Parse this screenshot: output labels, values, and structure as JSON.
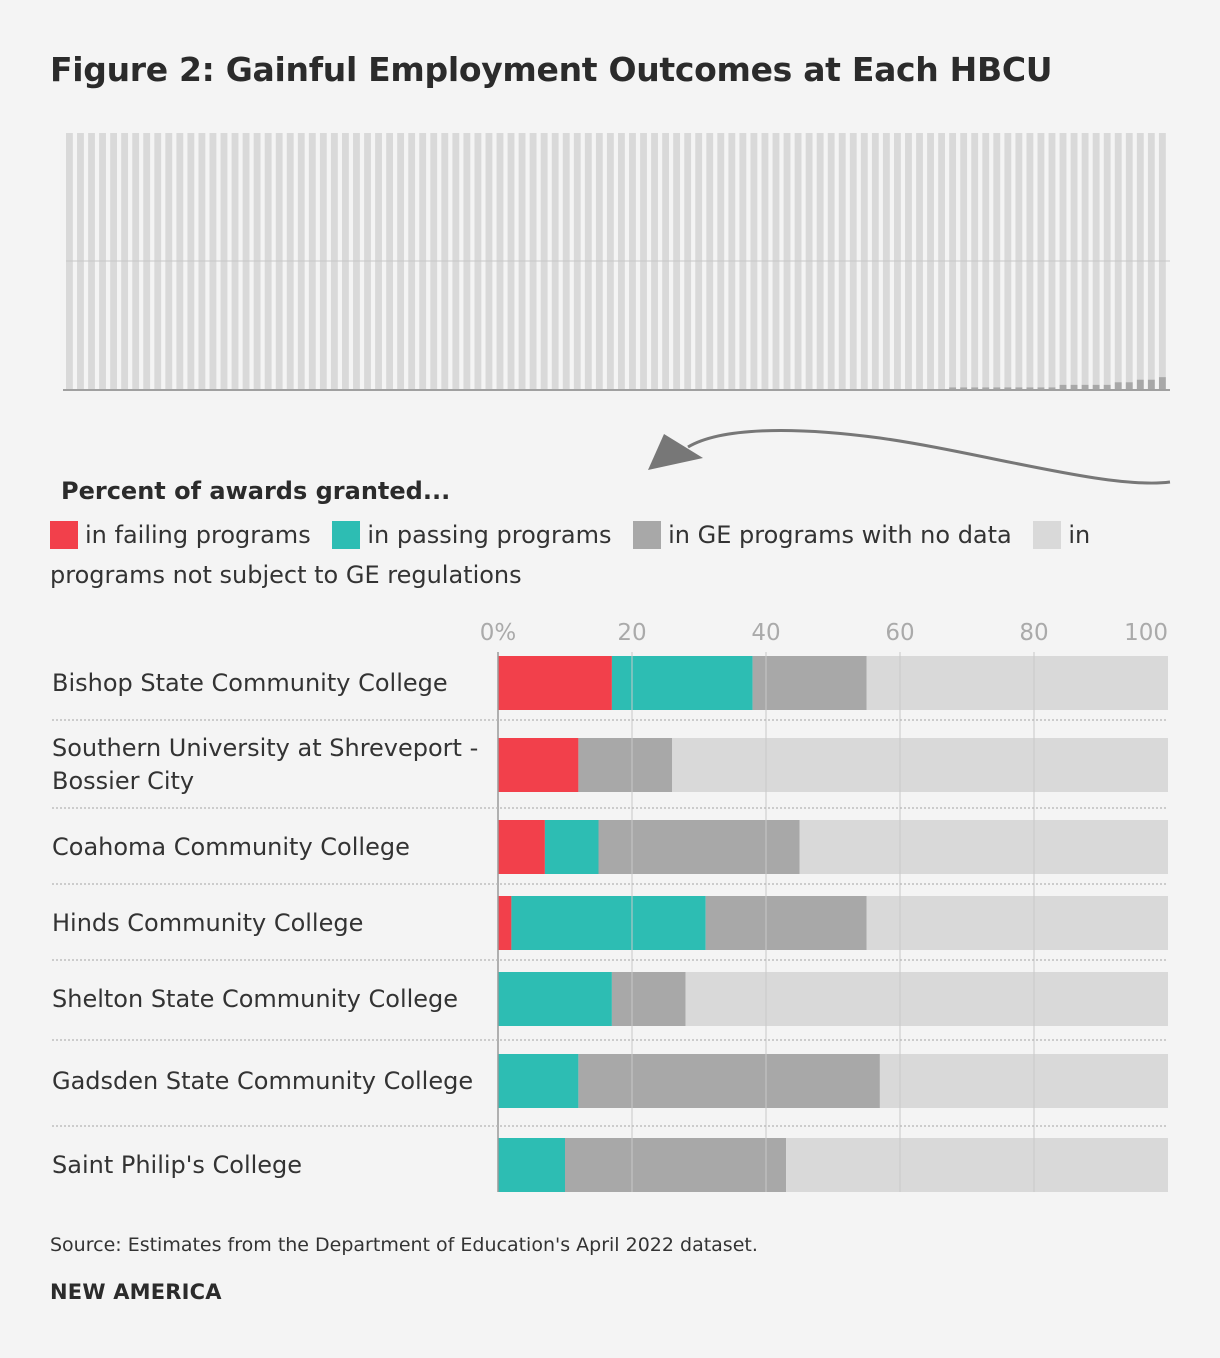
{
  "title": "Figure 2: Gainful Employment Outcomes at Each HBCU",
  "legend": {
    "heading": "Percent of awards granted...",
    "items": [
      {
        "label": "in failing programs",
        "color": "#f2404b"
      },
      {
        "label": "in passing programs",
        "color": "#2dbdb3"
      },
      {
        "label": "in GE programs with no data",
        "color": "#a8a8a8"
      },
      {
        "label": "in programs not subject to GE regulations",
        "color": "#d9d9d9"
      }
    ]
  },
  "source": "Source: Estimates from the Department of Education's April 2022 dataset.",
  "brand": "NEW AMERICA",
  "overview_data": {
    "type": "bar",
    "count": 100,
    "highlight_values": [
      1,
      1,
      1,
      1,
      1,
      1,
      1,
      1,
      1,
      1,
      2,
      2,
      2,
      2,
      2,
      3,
      3,
      4,
      4,
      5
    ],
    "ylim": [
      0,
      100
    ]
  },
  "chart_data": {
    "type": "bar",
    "orientation": "horizontal",
    "stacked": true,
    "xlim": [
      0,
      100
    ],
    "x_ticks": [
      "0%",
      "20",
      "40",
      "60",
      "80",
      "100"
    ],
    "categories": [
      "Bishop State Community College",
      "Southern University at Shreveport - Bossier City",
      "Coahoma Community College",
      "Hinds Community College",
      "Shelton State Community College",
      "Gadsden State Community College",
      "Saint Philip's College"
    ],
    "series": [
      {
        "name": "in failing programs",
        "color": "#f2404b",
        "values": [
          17,
          12,
          7,
          2,
          0,
          0,
          0
        ]
      },
      {
        "name": "in passing programs",
        "color": "#2dbdb3",
        "values": [
          21,
          0,
          8,
          29,
          17,
          12,
          10
        ]
      },
      {
        "name": "in GE programs with no data",
        "color": "#a8a8a8",
        "values": [
          17,
          14,
          30,
          24,
          11,
          45,
          33
        ]
      },
      {
        "name": "in programs not subject to GE regulations",
        "color": "#d9d9d9",
        "values": [
          45,
          74,
          55,
          45,
          72,
          43,
          57
        ]
      }
    ]
  }
}
